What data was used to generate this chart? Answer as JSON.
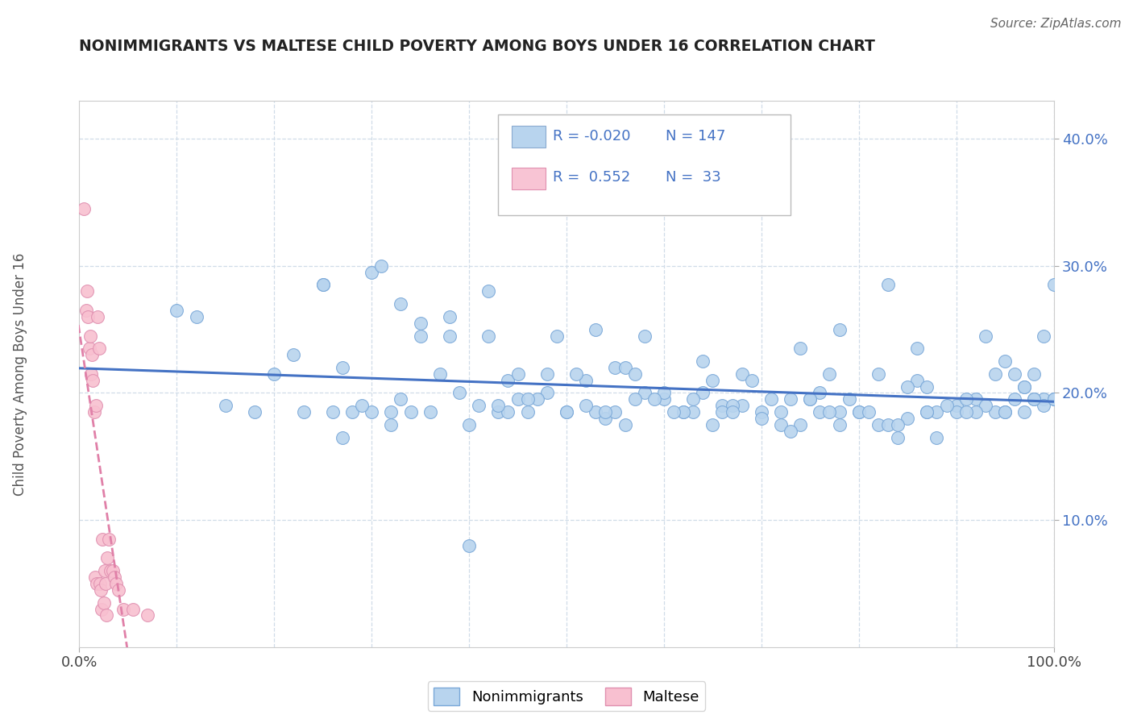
{
  "title": "NONIMMIGRANTS VS MALTESE CHILD POVERTY AMONG BOYS UNDER 16 CORRELATION CHART",
  "source": "Source: ZipAtlas.com",
  "ylabel": "Child Poverty Among Boys Under 16",
  "ytick_labels": [
    "10.0%",
    "20.0%",
    "30.0%",
    "40.0%"
  ],
  "ytick_values": [
    0.1,
    0.2,
    0.3,
    0.4
  ],
  "legend_entries": [
    {
      "label": "Nonimmigrants",
      "R": "-0.020",
      "N": "147",
      "face_color": "#b8d4ee",
      "edge_color": "#8aaad0"
    },
    {
      "label": "Maltese",
      "R": " 0.552",
      "N": " 33",
      "face_color": "#f8c4d4",
      "edge_color": "#e090b0"
    }
  ],
  "nonimmigrant_x": [
    0.1,
    0.12,
    0.15,
    0.18,
    0.2,
    0.22,
    0.25,
    0.27,
    0.3,
    0.32,
    0.25,
    0.27,
    0.3,
    0.33,
    0.35,
    0.38,
    0.4,
    0.42,
    0.44,
    0.46,
    0.48,
    0.5,
    0.52,
    0.54,
    0.55,
    0.56,
    0.58,
    0.6,
    0.62,
    0.64,
    0.65,
    0.66,
    0.68,
    0.7,
    0.72,
    0.74,
    0.75,
    0.76,
    0.78,
    0.8,
    0.82,
    0.84,
    0.85,
    0.86,
    0.88,
    0.9,
    0.92,
    0.94,
    0.95,
    0.96,
    0.97,
    0.98,
    0.99,
    1.0,
    0.35,
    0.4,
    0.45,
    0.5,
    0.55,
    0.6,
    0.65,
    0.7,
    0.75,
    0.8,
    0.85,
    0.9,
    0.95,
    1.0,
    0.38,
    0.43,
    0.48,
    0.53,
    0.58,
    0.63,
    0.68,
    0.73,
    0.78,
    0.83,
    0.88,
    0.93,
    0.98,
    0.42,
    0.47,
    0.52,
    0.57,
    0.62,
    0.67,
    0.72,
    0.77,
    0.82,
    0.87,
    0.92,
    0.97,
    0.28,
    0.33,
    0.36,
    0.41,
    0.46,
    0.51,
    0.56,
    0.61,
    0.66,
    0.71,
    0.76,
    0.79,
    0.81,
    0.84,
    0.87,
    0.89,
    0.91,
    0.93,
    0.96,
    0.99,
    1.0,
    0.32,
    0.37,
    0.44,
    0.49,
    0.54,
    0.59,
    0.64,
    0.69,
    0.74,
    0.78,
    0.83,
    0.86,
    0.91,
    0.94,
    0.97,
    0.99,
    0.26,
    0.29,
    0.34,
    0.39,
    0.45,
    0.57,
    0.67,
    0.77,
    0.87,
    0.95,
    0.98,
    0.23,
    0.31,
    0.43,
    0.53,
    0.63,
    0.73
  ],
  "nonimmigrant_y": [
    0.265,
    0.26,
    0.19,
    0.185,
    0.215,
    0.23,
    0.285,
    0.165,
    0.185,
    0.175,
    0.285,
    0.22,
    0.295,
    0.27,
    0.255,
    0.26,
    0.175,
    0.28,
    0.21,
    0.185,
    0.2,
    0.185,
    0.21,
    0.18,
    0.185,
    0.175,
    0.2,
    0.195,
    0.185,
    0.2,
    0.175,
    0.19,
    0.215,
    0.185,
    0.185,
    0.175,
    0.195,
    0.2,
    0.175,
    0.185,
    0.175,
    0.165,
    0.18,
    0.21,
    0.165,
    0.19,
    0.195,
    0.185,
    0.225,
    0.215,
    0.205,
    0.215,
    0.195,
    0.285,
    0.245,
    0.08,
    0.195,
    0.185,
    0.22,
    0.2,
    0.21,
    0.18,
    0.195,
    0.185,
    0.205,
    0.185,
    0.185,
    0.195,
    0.245,
    0.185,
    0.215,
    0.185,
    0.245,
    0.185,
    0.19,
    0.195,
    0.185,
    0.175,
    0.185,
    0.19,
    0.195,
    0.245,
    0.195,
    0.19,
    0.195,
    0.185,
    0.19,
    0.175,
    0.215,
    0.215,
    0.185,
    0.185,
    0.205,
    0.185,
    0.195,
    0.185,
    0.19,
    0.195,
    0.215,
    0.22,
    0.185,
    0.185,
    0.195,
    0.185,
    0.195,
    0.185,
    0.175,
    0.185,
    0.19,
    0.195,
    0.245,
    0.195,
    0.19,
    0.195,
    0.185,
    0.215,
    0.185,
    0.245,
    0.185,
    0.195,
    0.225,
    0.21,
    0.235,
    0.25,
    0.285,
    0.235,
    0.185,
    0.215,
    0.185,
    0.245,
    0.185,
    0.19,
    0.185,
    0.2,
    0.215,
    0.215,
    0.185,
    0.185,
    0.205,
    0.185,
    0.195,
    0.185,
    0.3,
    0.19,
    0.25,
    0.195,
    0.17
  ],
  "maltese_x": [
    0.005,
    0.007,
    0.008,
    0.009,
    0.01,
    0.011,
    0.012,
    0.013,
    0.014,
    0.015,
    0.016,
    0.017,
    0.018,
    0.019,
    0.02,
    0.021,
    0.022,
    0.023,
    0.024,
    0.025,
    0.026,
    0.027,
    0.028,
    0.029,
    0.03,
    0.032,
    0.034,
    0.036,
    0.038,
    0.04,
    0.045,
    0.055,
    0.07
  ],
  "maltese_y": [
    0.345,
    0.265,
    0.28,
    0.26,
    0.235,
    0.245,
    0.215,
    0.23,
    0.21,
    0.185,
    0.055,
    0.19,
    0.05,
    0.26,
    0.235,
    0.05,
    0.045,
    0.03,
    0.085,
    0.035,
    0.06,
    0.05,
    0.025,
    0.07,
    0.085,
    0.06,
    0.06,
    0.055,
    0.05,
    0.045,
    0.03,
    0.03,
    0.025
  ],
  "scatter_color_nonimmigrant": "#b8d4ee",
  "scatter_edge_nonimmigrant": "#7aa8d8",
  "scatter_color_maltese": "#f8c0d0",
  "scatter_edge_maltese": "#e090b0",
  "trend_color_nonimmigrant": "#4472c4",
  "trend_color_maltese": "#e080a8",
  "background_color": "#ffffff",
  "grid_color": "#d0dce8",
  "xmin": 0.0,
  "xmax": 1.0,
  "ymin": 0.0,
  "ymax": 0.43
}
